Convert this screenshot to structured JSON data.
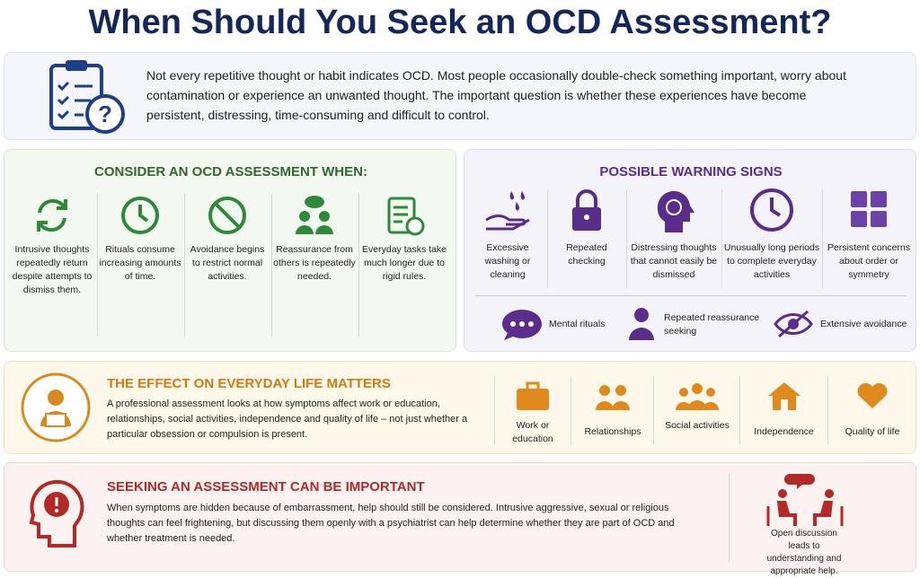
{
  "title": "When Should You Seek an OCD Assessment?",
  "intro": {
    "text": "Not every repetitive thought or habit indicates OCD. Most people occasionally double-check something important, worry about contamination or experience an unwanted thought. The important question is whether these experiences have become persistent, distressing, time-consuming and difficult to control."
  },
  "consider": {
    "title": "CONSIDER AN OCD ASSESSMENT WHEN:",
    "items": [
      "Intrusive thoughts repeatedly return despite attempts to dismiss them.",
      "Rituals consume increasing amounts of time.",
      "Avoidance begins to restrict normal activities.",
      "Reassurance from others is repeatedly needed.",
      "Everyday tasks take much longer due to rigid rules."
    ]
  },
  "warning": {
    "title": "POSSIBLE WARNING SIGNS",
    "items": [
      "Excessive washing or cleaning",
      "Repeated checking",
      "Distressing thoughts that cannot easily be dismissed",
      "Unusually long periods to complete everyday activities",
      "Persistent concerns about order or symmetry"
    ],
    "extra": [
      "Mental rituals",
      "Repeated reassurance seeking",
      "Extensive avoidance"
    ]
  },
  "effect": {
    "title": "THE EFFECT ON EVERYDAY LIFE MATTERS",
    "text": "A professional assessment looks at how symptoms affect work or education, relationships, social activities, independence and quality of life – not just whether a particular obsession or compulsion is present.",
    "areas": [
      "Work or education",
      "Relationships",
      "Social activities",
      "Independence",
      "Quality of life"
    ]
  },
  "seeking": {
    "title": "SEEKING AN ASSESSMENT CAN BE IMPORTANT",
    "text": "When symptoms are hidden because of embarrassment, help should still be considered. Intrusive aggressive, sexual or religious thoughts can feel frightening, but discussing them openly with a psychiatrist can help determine whether they are part of OCD and whether treatment is needed.",
    "caption": "Open discussion leads to understanding and appropriate help."
  }
}
